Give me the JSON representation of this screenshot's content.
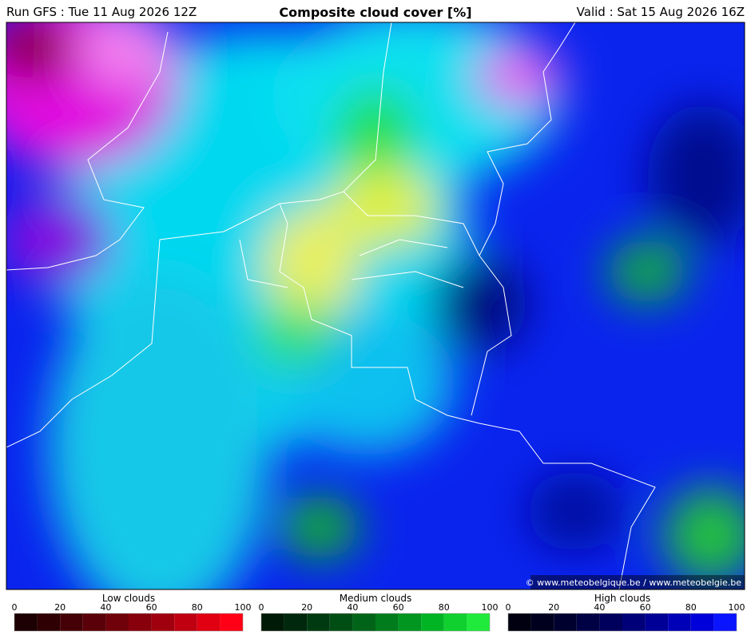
{
  "header": {
    "run": "Run GFS : Tue 11 Aug 2026 12Z",
    "title": "Composite cloud cover [%]",
    "valid": "Valid : Sat 15 Aug 2026 16Z"
  },
  "credit": "© www.meteobelgique.be / www.meteobelgie.be",
  "legends": [
    {
      "title": "Low clouds",
      "ticks": [
        0,
        20,
        40,
        60,
        80,
        100
      ],
      "colors": [
        "#1c0004",
        "#2e0004",
        "#440006",
        "#5a0008",
        "#70000a",
        "#88000c",
        "#a0000e",
        "#c00010",
        "#e00012",
        "#ff0016"
      ]
    },
    {
      "title": "Medium clouds",
      "ticks": [
        0,
        20,
        40,
        60,
        80,
        100
      ],
      "colors": [
        "#001a08",
        "#00280c",
        "#003a10",
        "#004e14",
        "#006418",
        "#007c1c",
        "#009620",
        "#00b424",
        "#10d030",
        "#20ea3c"
      ]
    },
    {
      "title": "High clouds",
      "ticks": [
        0,
        20,
        40,
        60,
        80,
        100
      ],
      "colors": [
        "#000010",
        "#00001e",
        "#00002e",
        "#000044",
        "#00005c",
        "#000078",
        "#000096",
        "#0000b8",
        "#0000da",
        "#0a14ff"
      ]
    }
  ]
}
